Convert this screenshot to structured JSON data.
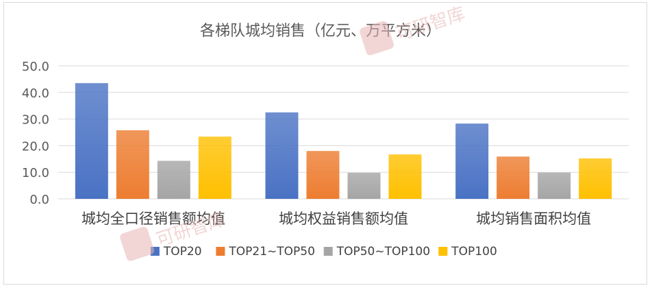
{
  "chart_data": {
    "type": "bar",
    "title": "各梯队城均销售（亿元、万平方米）",
    "categories": [
      "城均全口径销售额均值",
      "城均权益销售额均值",
      "城均销售面积均值"
    ],
    "series": [
      {
        "name": "TOP20",
        "values": [
          43.5,
          32.5,
          28.3
        ],
        "color": "#4a72c4"
      },
      {
        "name": "TOP21~TOP50",
        "values": [
          25.8,
          18.0,
          15.9
        ],
        "color": "#ed7d31"
      },
      {
        "name": "TOP50~TOP100",
        "values": [
          14.3,
          9.8,
          9.9
        ],
        "color": "#a5a5a5"
      },
      {
        "name": "TOP100",
        "values": [
          23.4,
          16.7,
          15.2
        ],
        "color": "#ffc000"
      }
    ],
    "yticks": [
      "0.0",
      "10.0",
      "20.0",
      "30.0",
      "40.0",
      "50.0"
    ],
    "ylim": [
      0,
      50
    ],
    "grid": true,
    "legend": "bottom"
  },
  "watermark": {
    "text": "可研智库",
    "logo": "HJ"
  }
}
